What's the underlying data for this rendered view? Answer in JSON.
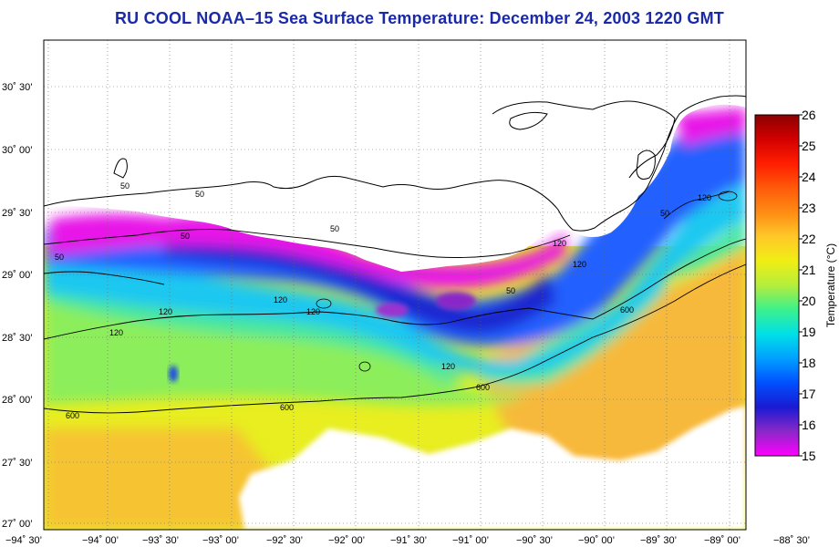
{
  "title": "RU COOL  NOAA–15  Sea Surface Temperature:  December 24, 2003 1220 GMT",
  "map": {
    "lat_labels": [
      "30˚ 30’",
      "30˚ 00’",
      "29˚ 30’",
      "29˚ 00’",
      "28˚ 30’",
      "28˚ 00’",
      "27˚ 30’",
      "27˚ 00’"
    ],
    "lon_labels": [
      "−94˚ 30’",
      "−94˚ 00’",
      "−93˚ 30’",
      "−93˚ 00’",
      "−92˚ 30’",
      "−92˚ 00’",
      "−91˚ 30’",
      "−91˚ 00’",
      "−90˚ 30’",
      "−90˚ 00’",
      "−89˚ 30’",
      "−89˚ 00’",
      "−88˚ 30’"
    ],
    "contour_labels": [
      "50",
      "50",
      "50",
      "50",
      "120",
      "120",
      "120",
      "120",
      "120",
      "120",
      "120",
      "50",
      "50",
      "600",
      "600",
      "600",
      "600",
      "50",
      "120"
    ]
  },
  "colorbar": {
    "label": "Temperature (°C)",
    "ticks": [
      "26",
      "25",
      "24",
      "23",
      "22",
      "21",
      "20",
      "19",
      "18",
      "17",
      "16",
      "15"
    ],
    "min": 15,
    "max": 26,
    "colors": [
      "#ff00ff",
      "#8a28c8",
      "#1a1ad2",
      "#0050ff",
      "#00a0ff",
      "#00e0e8",
      "#3cf08c",
      "#b4ee3c",
      "#f0ee14",
      "#ffc828",
      "#ff8c14",
      "#ff5a0a",
      "#ff1e00",
      "#d20000",
      "#8c0000"
    ]
  }
}
